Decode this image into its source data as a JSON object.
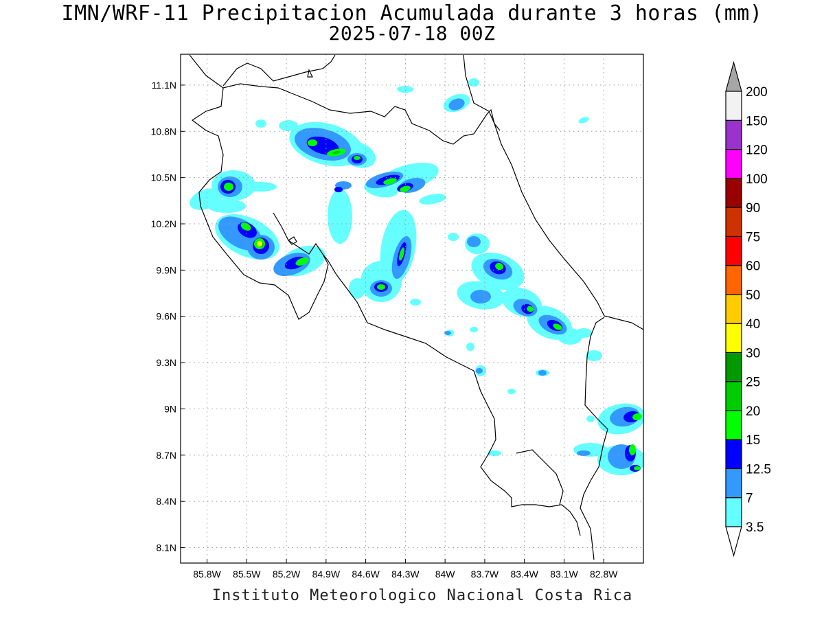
{
  "title": "IMN/WRF-11 Precipitacion Acumulada durante 3 horas (mm)",
  "subtitle": "2025-07-18 00Z",
  "credit": "Instituto Meteorologico Nacional Costa Rica",
  "map": {
    "lon_range": [
      -86.0,
      -82.5
    ],
    "lat_range": [
      8.0,
      11.3
    ],
    "lon_ticks": [
      "85.8W",
      "85.5W",
      "85.2W",
      "84.9W",
      "84.6W",
      "84.3W",
      "84W",
      "83.7W",
      "83.4W",
      "83.1W",
      "82.8W"
    ],
    "lon_tick_values": [
      -85.8,
      -85.5,
      -85.2,
      -84.9,
      -84.6,
      -84.3,
      -84.0,
      -83.7,
      -83.4,
      -83.1,
      -82.8
    ],
    "lat_ticks": [
      "11.1N",
      "10.8N",
      "10.5N",
      "10.2N",
      "9.9N",
      "9.6N",
      "9.3N",
      "9N",
      "8.7N",
      "8.4N",
      "8.1N"
    ],
    "lat_tick_values": [
      11.1,
      10.8,
      10.5,
      10.2,
      9.9,
      9.6,
      9.3,
      9.0,
      8.7,
      8.4,
      8.1
    ],
    "grid": true
  },
  "colorbar": {
    "levels": [
      "3.5",
      "7",
      "12.5",
      "15",
      "20",
      "25",
      "30",
      "40",
      "50",
      "60",
      "75",
      "90",
      "100",
      "120",
      "150",
      "200"
    ],
    "colors": [
      "#ffffff",
      "#66ffff",
      "#3399ff",
      "#0000ff",
      "#00ff00",
      "#00cc00",
      "#009900",
      "#ffff00",
      "#ffcc00",
      "#ff6600",
      "#ff0000",
      "#cc3300",
      "#990000",
      "#ff00ff",
      "#9933cc",
      "#f2f2f2",
      "#a6a6a6"
    ]
  }
}
